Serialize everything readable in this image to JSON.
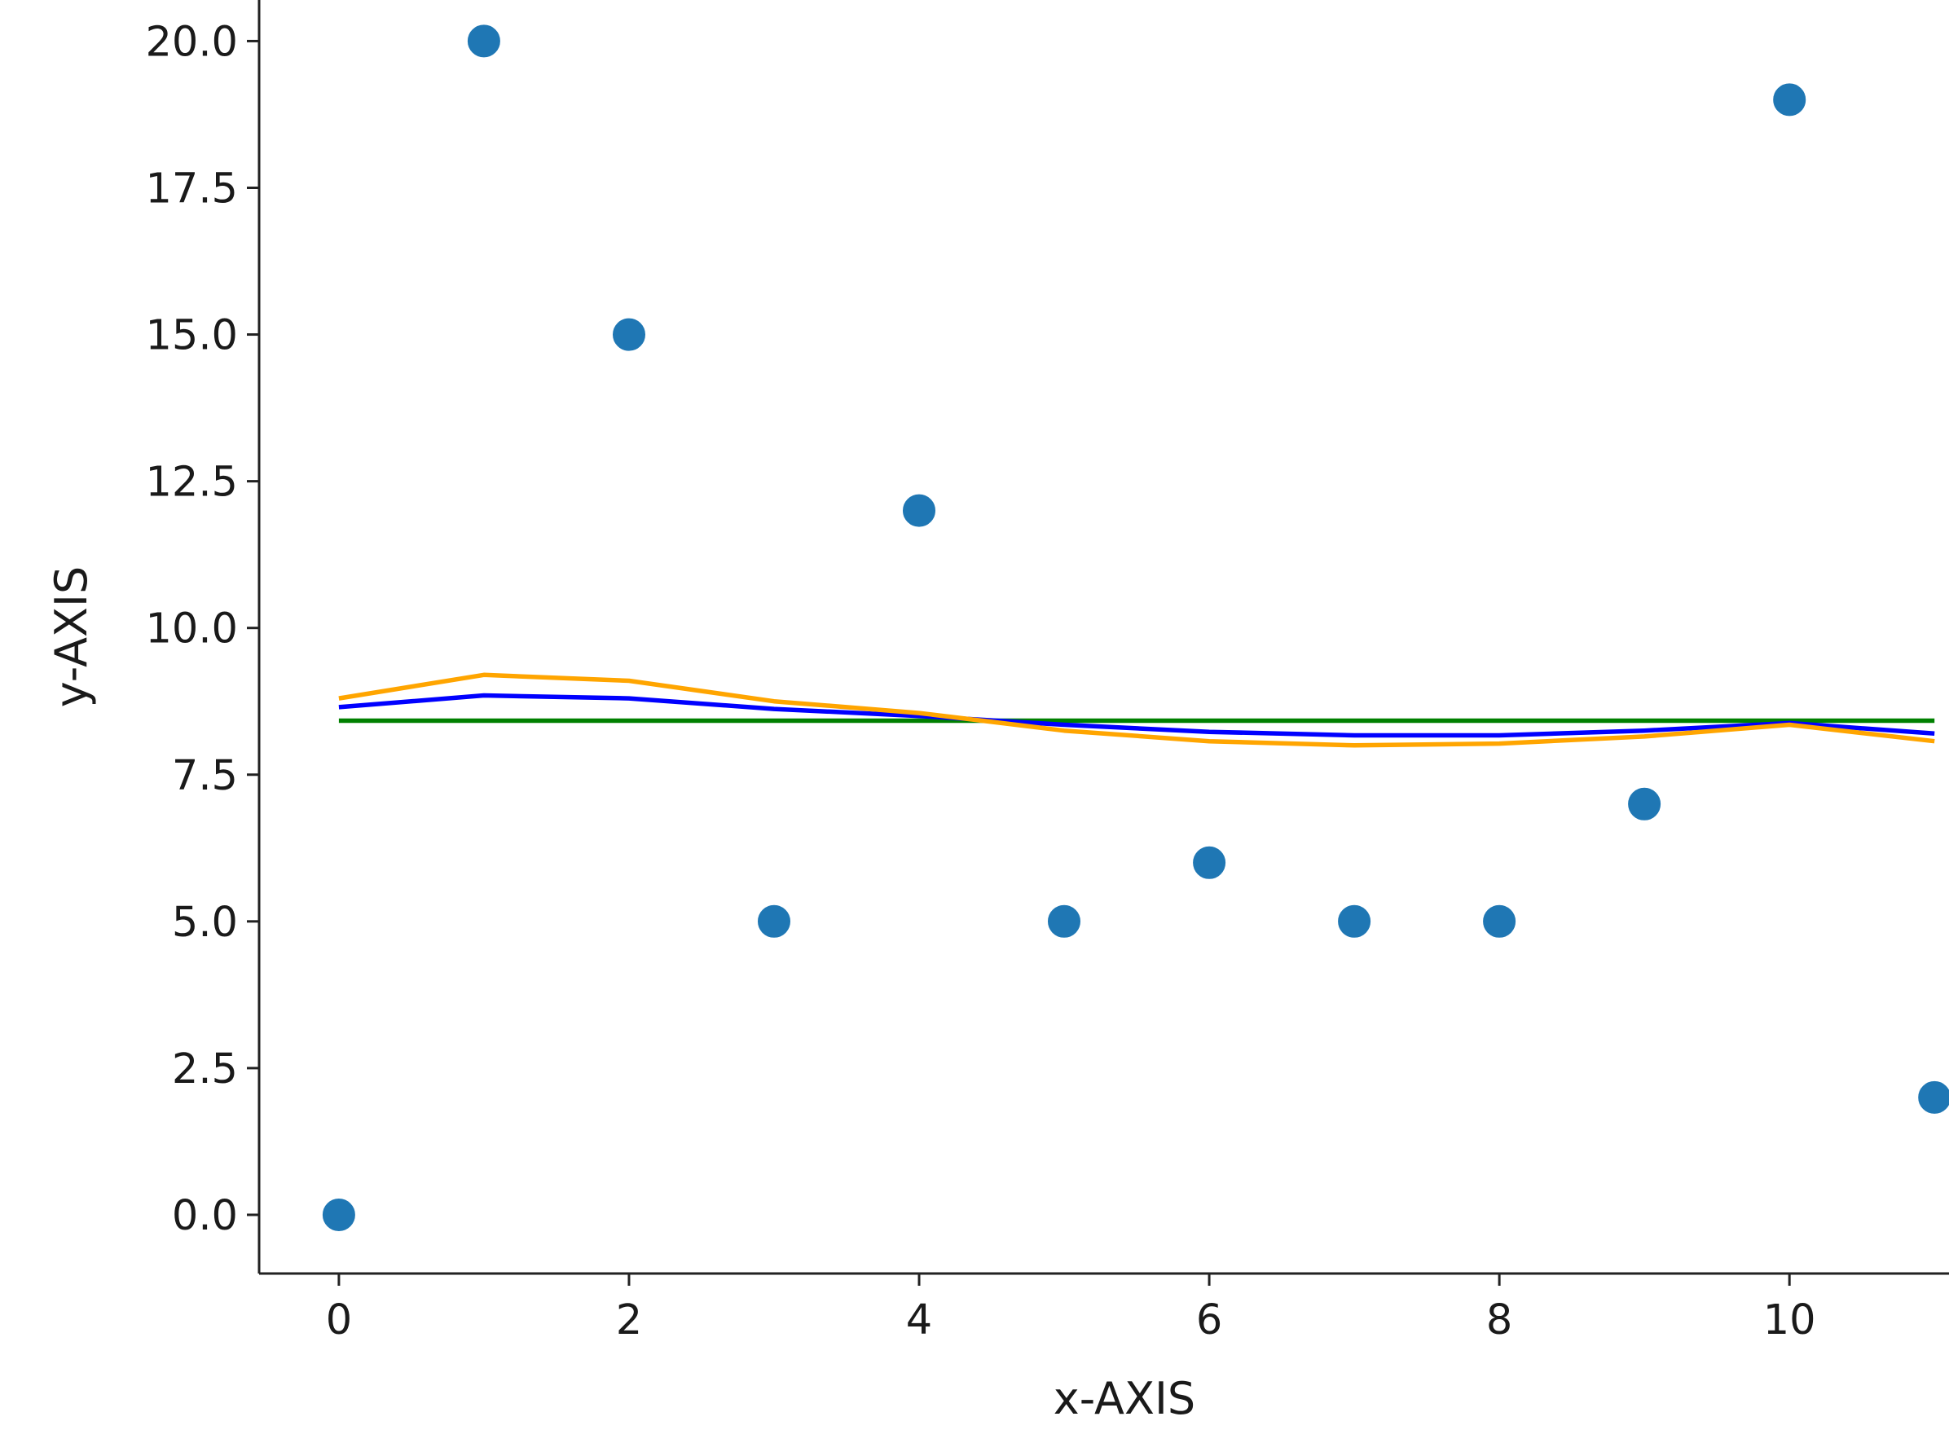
{
  "chart_data": {
    "type": "scatter",
    "xlabel": "x-AXIS",
    "ylabel": "y-AXIS",
    "xlim": [
      -0.55,
      11.1
    ],
    "ylim": [
      -1.0,
      20.7
    ],
    "x_ticks": [
      0,
      2,
      4,
      6,
      8,
      10
    ],
    "x_tick_labels": [
      "0",
      "2",
      "4",
      "6",
      "8",
      "10"
    ],
    "y_ticks": [
      0.0,
      2.5,
      5.0,
      7.5,
      10.0,
      12.5,
      15.0,
      17.5,
      20.0
    ],
    "y_tick_labels": [
      "0.0",
      "2.5",
      "5.0",
      "7.5",
      "10.0",
      "12.5",
      "15.0",
      "17.5",
      "20.0"
    ],
    "grid": false,
    "spines": [
      "left",
      "bottom"
    ],
    "scatter": {
      "color": "#1f77b4",
      "x": [
        0,
        1,
        2,
        3,
        4,
        5,
        6,
        7,
        8,
        9,
        10,
        11
      ],
      "y": [
        0,
        20,
        15,
        5,
        12,
        5,
        6,
        5,
        5,
        7,
        19,
        2
      ]
    },
    "series": [
      {
        "type": "line",
        "color": "#008000",
        "x": [
          0,
          1,
          2,
          3,
          4,
          5,
          6,
          7,
          8,
          9,
          10,
          11
        ],
        "y": [
          8.42,
          8.42,
          8.42,
          8.42,
          8.42,
          8.42,
          8.42,
          8.42,
          8.42,
          8.42,
          8.42,
          8.42
        ]
      },
      {
        "type": "line",
        "color": "#0000ff",
        "x": [
          0,
          1,
          2,
          3,
          4,
          5,
          6,
          7,
          8,
          9,
          10,
          11
        ],
        "y": [
          8.65,
          8.85,
          8.8,
          8.62,
          8.5,
          8.35,
          8.23,
          8.17,
          8.17,
          8.25,
          8.38,
          8.2
        ]
      },
      {
        "type": "line",
        "color": "#ffa500",
        "x": [
          0,
          1,
          2,
          3,
          4,
          5,
          6,
          7,
          8,
          9,
          10,
          11
        ],
        "y": [
          8.8,
          9.2,
          9.1,
          8.75,
          8.55,
          8.25,
          8.07,
          8.0,
          8.03,
          8.15,
          8.35,
          8.07
        ]
      }
    ]
  }
}
